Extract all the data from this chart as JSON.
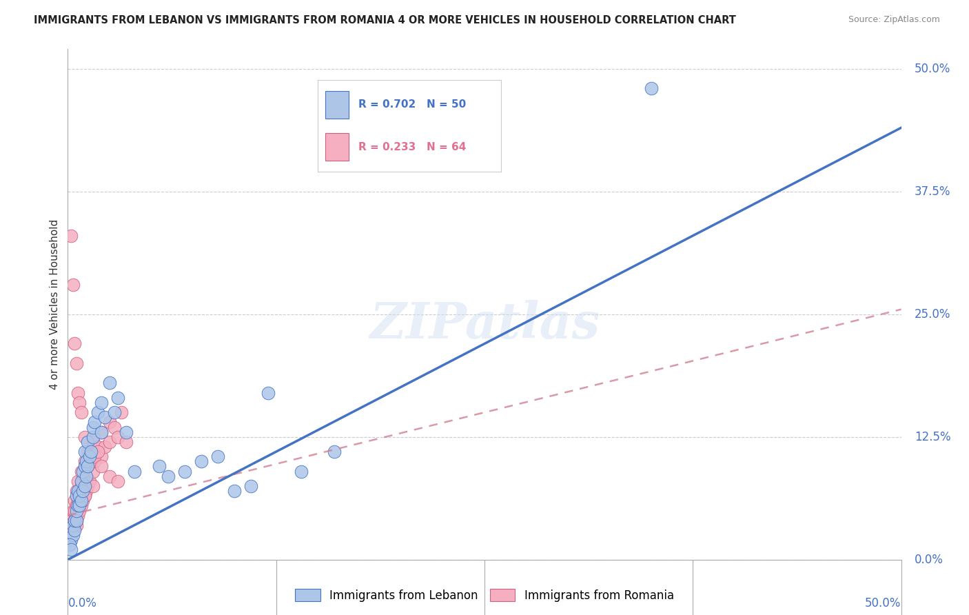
{
  "title": "IMMIGRANTS FROM LEBANON VS IMMIGRANTS FROM ROMANIA 4 OR MORE VEHICLES IN HOUSEHOLD CORRELATION CHART",
  "source": "Source: ZipAtlas.com",
  "ylabel": "4 or more Vehicles in Household",
  "ytick_labels": [
    "0.0%",
    "12.5%",
    "25.0%",
    "37.5%",
    "50.0%"
  ],
  "ytick_values": [
    0,
    12.5,
    25.0,
    37.5,
    50.0
  ],
  "xlim": [
    0,
    50
  ],
  "ylim": [
    0,
    52
  ],
  "legend_r1_color": "#4472c4",
  "legend_r2_color": "#e07090",
  "lebanon_color": "#adc6e8",
  "lebanon_edge": "#4472c4",
  "romania_color": "#f5afc0",
  "romania_edge": "#d06080",
  "line_lebanon_color": "#4472c4",
  "line_romania_color": "#d08090",
  "watermark": "ZIPatlas",
  "line_leb_m": 0.88,
  "line_leb_b": 0.0,
  "line_rom_m": 0.42,
  "line_rom_b": 4.5,
  "lebanon_scatter_x": [
    0.2,
    0.3,
    0.3,
    0.4,
    0.4,
    0.5,
    0.5,
    0.5,
    0.6,
    0.6,
    0.7,
    0.7,
    0.8,
    0.8,
    0.9,
    0.9,
    1.0,
    1.0,
    1.0,
    1.1,
    1.1,
    1.2,
    1.2,
    1.3,
    1.4,
    1.5,
    1.5,
    1.6,
    1.8,
    2.0,
    2.0,
    2.2,
    2.5,
    2.8,
    3.0,
    3.5,
    4.0,
    5.5,
    6.0,
    7.0,
    8.0,
    9.0,
    10.0,
    11.0,
    12.0,
    14.0,
    16.0,
    35.0,
    0.1,
    0.2
  ],
  "lebanon_scatter_y": [
    2.0,
    2.5,
    3.5,
    3.0,
    4.0,
    4.0,
    5.0,
    6.5,
    5.5,
    7.0,
    5.5,
    6.5,
    6.0,
    8.0,
    7.0,
    9.0,
    7.5,
    9.5,
    11.0,
    8.5,
    10.0,
    9.5,
    12.0,
    10.5,
    11.0,
    12.5,
    13.5,
    14.0,
    15.0,
    13.0,
    16.0,
    14.5,
    18.0,
    15.0,
    16.5,
    13.0,
    9.0,
    9.5,
    8.5,
    9.0,
    10.0,
    10.5,
    7.0,
    7.5,
    17.0,
    9.0,
    11.0,
    48.0,
    1.5,
    1.0
  ],
  "romania_scatter_x": [
    0.1,
    0.1,
    0.2,
    0.2,
    0.2,
    0.3,
    0.3,
    0.3,
    0.4,
    0.4,
    0.4,
    0.5,
    0.5,
    0.5,
    0.6,
    0.6,
    0.6,
    0.7,
    0.7,
    0.8,
    0.8,
    0.8,
    0.9,
    0.9,
    1.0,
    1.0,
    1.0,
    1.1,
    1.2,
    1.2,
    1.3,
    1.3,
    1.5,
    1.5,
    1.6,
    1.8,
    2.0,
    2.0,
    2.2,
    2.5,
    2.5,
    2.8,
    3.0,
    3.2,
    3.5,
    0.2,
    0.3,
    0.4,
    0.5,
    0.6,
    0.7,
    0.8,
    1.0,
    1.2,
    1.4,
    1.6,
    1.8,
    2.0,
    2.5,
    3.0,
    0.4,
    0.5,
    1.0,
    1.5
  ],
  "romania_scatter_y": [
    2.0,
    3.0,
    2.5,
    3.5,
    4.0,
    3.0,
    4.5,
    5.0,
    3.5,
    5.0,
    6.0,
    4.0,
    5.5,
    7.0,
    4.5,
    6.0,
    8.0,
    5.0,
    7.0,
    5.5,
    7.5,
    9.0,
    6.0,
    8.0,
    6.5,
    8.5,
    10.0,
    7.0,
    7.5,
    9.5,
    8.0,
    11.0,
    9.0,
    12.0,
    10.0,
    11.5,
    10.5,
    13.0,
    11.5,
    12.0,
    14.0,
    13.5,
    12.5,
    15.0,
    12.0,
    33.0,
    28.0,
    22.0,
    20.0,
    17.0,
    16.0,
    15.0,
    12.5,
    11.0,
    10.0,
    10.5,
    11.0,
    9.5,
    8.5,
    8.0,
    4.0,
    3.5,
    6.5,
    7.5
  ]
}
